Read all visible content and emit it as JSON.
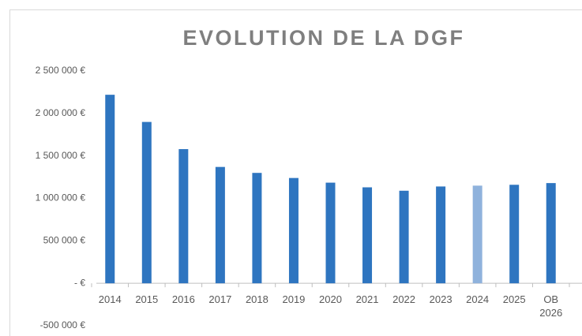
{
  "chart_data": {
    "type": "bar",
    "title": "EVOLUTION DE LA DGF",
    "categories": [
      "2014",
      "2015",
      "2016",
      "2017",
      "2018",
      "2019",
      "2020",
      "2021",
      "2022",
      "2023",
      "2024",
      "2025",
      "OB 2026"
    ],
    "values": [
      2220000,
      1900000,
      1580000,
      1370000,
      1300000,
      1240000,
      1185000,
      1130000,
      1090000,
      1140000,
      1150000,
      1160000,
      1180000
    ],
    "colors": [
      "#2e75c0",
      "#2e75c0",
      "#2e75c0",
      "#2e75c0",
      "#2e75c0",
      "#2e75c0",
      "#2e75c0",
      "#2e75c0",
      "#2e75c0",
      "#2e75c0",
      "#8fb2dc",
      "#2e75c0",
      "#2e75c0"
    ],
    "ylim": [
      -500000,
      2500000
    ],
    "yticks": [
      {
        "value": -500000,
        "label": "-500 000 €"
      },
      {
        "value": 0,
        "label": "- €"
      },
      {
        "value": 500000,
        "label": "500 000 €"
      },
      {
        "value": 1000000,
        "label": "1 000 000 €"
      },
      {
        "value": 1500000,
        "label": "1 500 000 €"
      },
      {
        "value": 2000000,
        "label": "2 000 000 €"
      },
      {
        "value": 2500000,
        "label": "2 500 000 €"
      }
    ],
    "grid": false
  }
}
